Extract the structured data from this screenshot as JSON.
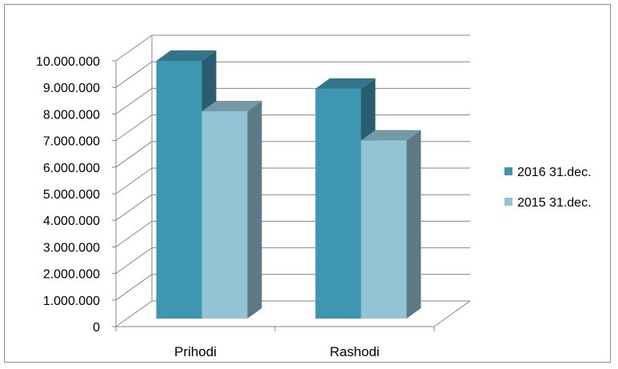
{
  "chart_data": {
    "type": "bar",
    "style": "3d-clustered-column",
    "categories": [
      "Prihodi",
      "Rashodi"
    ],
    "series": [
      {
        "name": "2016 31.dec.",
        "values": [
          9700000,
          8650000
        ],
        "color": "#3f96b1"
      },
      {
        "name": "2015 31.dec.",
        "values": [
          7800000,
          6700000
        ],
        "color": "#93c4d6"
      }
    ],
    "ylim": [
      0,
      10000000
    ],
    "y_ticks": [
      "0",
      "1.000.000",
      "2.000.000",
      "3.000.000",
      "4.000.000",
      "5.000.000",
      "6.000.000",
      "7.000.000",
      "8.000.000",
      "9.000.000",
      "10.000.000"
    ],
    "grid": true,
    "legend": "right",
    "title": "",
    "xlabel": "",
    "ylabel": ""
  }
}
